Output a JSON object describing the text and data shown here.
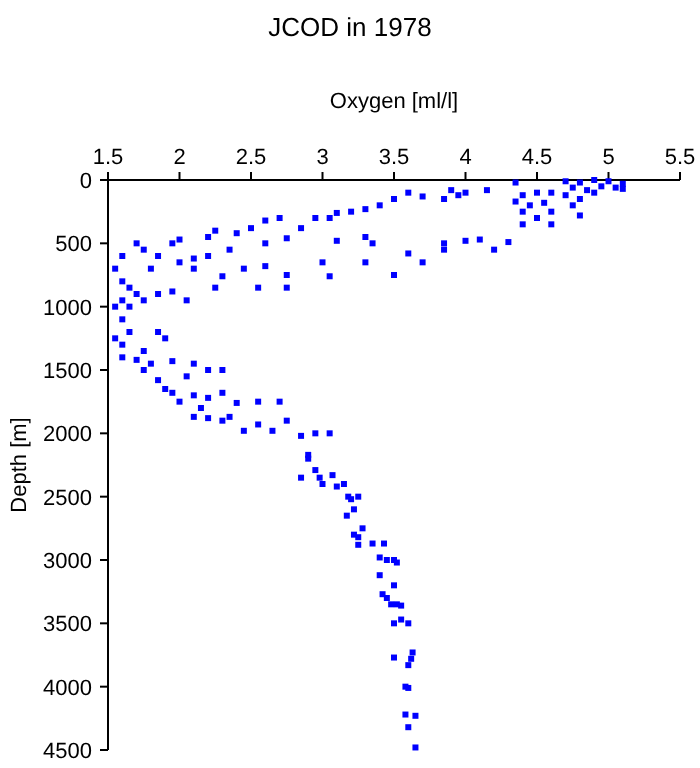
{
  "chart_data": {
    "type": "scatter",
    "title": "JCOD in 1978",
    "xlabel": "Oxygen [ml/l]",
    "ylabel": "Depth [m]",
    "marker": "square",
    "grid": false,
    "x": [
      4.7,
      4.8,
      4.9,
      5.0,
      5.1,
      4.75,
      4.85,
      4.95,
      5.05,
      4.7,
      4.8,
      4.9,
      5.1,
      4.6,
      4.5,
      4.4,
      4.35,
      4.45,
      4.55,
      4.6,
      4.75,
      4.8,
      4.4,
      4.5,
      4.4,
      4.6,
      4.35,
      4.15,
      3.9,
      3.95,
      4.0,
      3.85,
      3.7,
      3.6,
      3.5,
      3.4,
      3.3,
      3.2,
      3.1,
      3.05,
      2.95,
      2.85,
      2.7,
      2.6,
      2.5,
      2.4,
      2.25,
      2.2,
      2.0,
      1.95,
      2.75,
      2.6,
      3.1,
      3.3,
      3.35,
      3.85,
      4.0,
      4.1,
      4.3,
      3.85,
      3.6,
      3.7,
      4.2,
      3.5,
      3.3,
      3.05,
      3.0,
      2.75,
      2.75,
      2.55,
      2.45,
      2.6,
      2.25,
      2.1,
      2.2,
      2.1,
      2.0,
      1.85,
      2.35,
      2.3,
      1.8,
      1.7,
      1.75,
      1.6,
      1.55,
      1.6,
      1.65,
      1.7,
      1.75,
      1.6,
      1.55,
      1.65,
      1.85,
      1.95,
      2.05,
      1.6,
      1.65,
      1.55,
      1.6,
      1.85,
      1.9,
      1.75,
      1.6,
      1.7,
      1.75,
      1.8,
      1.95,
      2.1,
      2.2,
      2.3,
      2.05,
      1.85,
      1.9,
      1.95,
      2.0,
      2.1,
      2.2,
      2.3,
      2.4,
      2.55,
      2.7,
      2.15,
      2.1,
      2.2,
      2.3,
      2.35,
      2.45,
      2.55,
      2.65,
      2.75,
      2.85,
      2.95,
      3.05,
      2.9,
      2.9,
      2.85,
      2.95,
      2.98,
      3.07,
      3.0,
      3.1,
      3.15,
      3.18,
      3.2,
      3.25,
      3.17,
      3.22,
      3.22,
      3.28,
      3.25,
      3.25,
      3.35,
      3.43,
      3.4,
      3.45,
      3.5,
      3.52,
      3.4,
      3.42,
      3.45,
      3.5,
      3.52,
      3.48,
      3.55,
      3.5,
      3.55,
      3.6,
      3.5,
      3.6,
      3.62,
      3.63,
      3.58,
      3.6,
      3.58,
      3.65,
      3.6,
      3.65
    ],
    "series": [
      {
        "color": "#0000ff",
        "values": [
          10,
          20,
          0,
          10,
          30,
          60,
          80,
          50,
          60,
          120,
          150,
          100,
          70,
          100,
          100,
          120,
          170,
          200,
          180,
          250,
          200,
          280,
          250,
          300,
          350,
          350,
          20,
          80,
          80,
          120,
          100,
          150,
          130,
          100,
          150,
          200,
          230,
          250,
          260,
          300,
          300,
          380,
          300,
          320,
          380,
          420,
          400,
          450,
          470,
          500,
          460,
          500,
          480,
          450,
          500,
          500,
          480,
          470,
          490,
          550,
          580,
          650,
          550,
          750,
          650,
          760,
          650,
          750,
          850,
          850,
          700,
          680,
          850,
          700,
          600,
          620,
          650,
          600,
          550,
          760,
          700,
          500,
          550,
          600,
          700,
          800,
          850,
          900,
          950,
          950,
          1000,
          1000,
          900,
          880,
          950,
          1100,
          1200,
          1250,
          1300,
          1200,
          1250,
          1350,
          1400,
          1420,
          1500,
          1450,
          1430,
          1450,
          1500,
          1500,
          1550,
          1580,
          1650,
          1680,
          1750,
          1700,
          1720,
          1680,
          1760,
          1750,
          1750,
          1800,
          1870,
          1880,
          1900,
          1870,
          1980,
          1930,
          1980,
          1900,
          2020,
          2000,
          2000,
          2170,
          2200,
          2350,
          2290,
          2350,
          2330,
          2400,
          2420,
          2400,
          2500,
          2520,
          2500,
          2650,
          2600,
          2800,
          2750,
          2820,
          2880,
          2870,
          2870,
          2980,
          3000,
          3000,
          3020,
          3120,
          3270,
          3300,
          3200,
          3350,
          3350,
          3360,
          3500,
          3470,
          3500,
          3770,
          3830,
          3780,
          3730,
          4000,
          4010,
          4220,
          4230,
          4320,
          4480
        ]
      }
    ],
    "xlim": [
      1.5,
      5.5
    ],
    "xticks": [
      1.5,
      2,
      2.5,
      3,
      3.5,
      4,
      4.5,
      5,
      5.5
    ],
    "ylim": [
      4500,
      0
    ],
    "yticks": [
      0,
      500,
      1000,
      1500,
      2000,
      2500,
      3000,
      3500,
      4000,
      4500
    ]
  }
}
